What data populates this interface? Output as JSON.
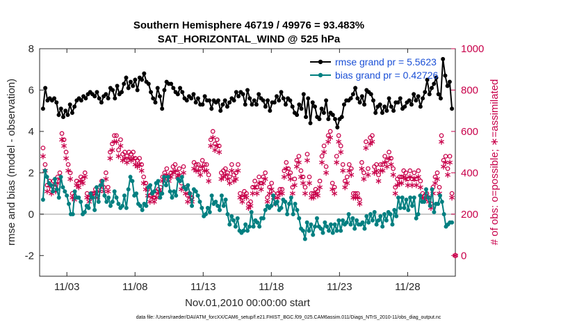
{
  "chart_data": {
    "type": "line",
    "title": "Southern Hemisphere 46719 / 49976 = 93.483%",
    "subtitle": "SAT_HORIZONTAL_WIND @ 525 hPa",
    "xlabel": "Nov.01,2010 00:00:00 start",
    "ylabel_left": "rmse and bias (model - observation)",
    "ylabel_right": "# of obs: o=possible; ∗=assimilated",
    "xlim": [
      0,
      30.5
    ],
    "ylim_left": [
      -3,
      8
    ],
    "ylim_right": [
      -100,
      1000
    ],
    "x_ticks": [
      2,
      7,
      12,
      17,
      22,
      27
    ],
    "x_tick_labels": [
      "11/03",
      "11/08",
      "11/13",
      "11/18",
      "11/23",
      "11/28"
    ],
    "y_ticks_left": [
      -2,
      0,
      2,
      4,
      6,
      8
    ],
    "y_ticks_right": [
      0,
      200,
      400,
      600,
      800,
      1000
    ],
    "grid": false,
    "legend_position": "top-right",
    "footer": "data file: /Users/raeder/DAI/ATM_forcXX/CAM6_setup/f.e21.FHIST_BGC.f09_025.CAM6assim.011/Diags_NTrS_2010-11/obs_diag_output.nc",
    "series": [
      {
        "name": "rmse grand pr = 5.5623",
        "color": "#000000",
        "marker": "dot",
        "axis": "left",
        "values": [
          5.1,
          6.1,
          5.5,
          5.6,
          5.5,
          5.6,
          5.4,
          4.8,
          5.1,
          4.7,
          5.0,
          4.8,
          5.3,
          4.9,
          5.2,
          5.5,
          5.6,
          5.5,
          5.7,
          5.6,
          5.8,
          5.9,
          5.8,
          5.7,
          5.9,
          5.6,
          5.4,
          5.7,
          5.8,
          5.6,
          6.1,
          6.0,
          5.6,
          6.2,
          5.8,
          5.9,
          6.3,
          6.6,
          6.1,
          6.4,
          6.2,
          6.5,
          6.0,
          6.6,
          6.5,
          6.8,
          6.4,
          6.3,
          5.9,
          5.6,
          5.4,
          6.1,
          5.7,
          5.1,
          6.0,
          6.4,
          6.3,
          6.3,
          6.1,
          5.9,
          5.8,
          6.1,
          5.9,
          5.6,
          5.5,
          5.7,
          5.6,
          5.8,
          5.4,
          5.6,
          5.3,
          5.3,
          5.7,
          5.5,
          5.5,
          5.1,
          5.5,
          5.4,
          5.5,
          5.0,
          5.3,
          5.5,
          5.2,
          5.4,
          5.6,
          5.5,
          5.9,
          5.7,
          5.9,
          5.8,
          5.3,
          6.0,
          5.6,
          5.3,
          5.5,
          5.3,
          5.8,
          5.6,
          5.5,
          5.2,
          5.5,
          5.0,
          5.4,
          5.4,
          5.7,
          5.5,
          5.9,
          5.6,
          5.3,
          5.6,
          5.5,
          5.2,
          4.9,
          4.8,
          5.3,
          5.1,
          5.8,
          4.7,
          5.6,
          4.4,
          5.4,
          5.2,
          4.7,
          4.6,
          5.1,
          4.9,
          5.5,
          4.6,
          4.9,
          4.8,
          4.6,
          4.2,
          4.6,
          4.7,
          5.3,
          5.5,
          5.5,
          5.6,
          5.8,
          6.1,
          5.6,
          5.4,
          5.7,
          5.3,
          6.0,
          5.9,
          5.8,
          5.5,
          4.9,
          5.2,
          5.3,
          4.9,
          5.2,
          5.0,
          5.6,
          5.2,
          5.0,
          5.4,
          5.4,
          5.6,
          5.1,
          5.2,
          5.4,
          5.5,
          5.3,
          5.8,
          5.5,
          5.7,
          5.2,
          5.6,
          5.9,
          6.5,
          5.8,
          6.1,
          6.3,
          6.6,
          5.8,
          5.6,
          7.5,
          6.7,
          6.2,
          6.4,
          5.1
        ]
      },
      {
        "name": "bias grand pr = 0.42726",
        "color": "#007f80",
        "marker": "dot",
        "axis": "left",
        "values": [
          0.7,
          2.1,
          1.8,
          1.5,
          1.4,
          1.1,
          1.7,
          1.2,
          0.8,
          1.8,
          1.3,
          1.1,
          0.9,
          0.5,
          0.0,
          0.0,
          1.1,
          0.8,
          0.8,
          0.6,
          0.0,
          0.1,
          0.4,
          0.3,
          1.0,
          0.8,
          0.2,
          1.3,
          0.6,
          1.4,
          1.6,
          0.9,
          0.6,
          0.8,
          0.4,
          0.6,
          1.1,
          0.8,
          0.5,
          0.3,
          0.4,
          0.9,
          0.3,
          1.2,
          1.8,
          1.6,
          0.9,
          1.0,
          0.5,
          0.4,
          0.2,
          0.5,
          0.4,
          1.3,
          1.4,
          1.0,
          1.1,
          1.5,
          1.6,
          0.8,
          1.0,
          1.8,
          1.4,
          1.8,
          1.1,
          0.8,
          1.1,
          0.9,
          1.7,
          1.6,
          1.8,
          1.3,
          1.2,
          1.4,
          1.0,
          0.4,
          1.2,
          1.1,
          0.9,
          0.6,
          0.3,
          -0.1,
          0.0,
          0.3,
          0.1,
          0.9,
          0.5,
          0.6,
          0.4,
          0.2,
          0.9,
          0.4,
          0.7,
          0.0,
          -0.5,
          -0.1,
          -0.3,
          -0.6,
          -0.2,
          -0.8,
          -0.9,
          -0.8,
          -0.5,
          -0.8,
          -0.6,
          0.1,
          -0.6,
          -0.3,
          -0.4,
          -0.6,
          -0.2,
          -0.2,
          0.2,
          0.4,
          0.3,
          0.4,
          0.9,
          0.5,
          0.6,
          0.2,
          0.3,
          0.7,
          0.6,
          0.0,
          0.5,
          0.8,
          0.0,
          0.5,
          0.2,
          -0.2,
          -0.7,
          -0.8,
          -1.2,
          -0.4,
          -0.8,
          -0.5,
          -1.0,
          -0.6,
          -0.2,
          -0.6,
          -0.7,
          -0.9,
          -0.4,
          -0.6,
          -0.8,
          -0.5,
          -0.9,
          -0.5,
          -0.8,
          -0.3,
          -0.8,
          -0.3,
          -0.5,
          -0.4,
          0.0,
          -0.5,
          -0.2,
          -0.7,
          -0.3,
          -0.5,
          -0.5,
          -0.4,
          -0.7,
          -0.1,
          -0.4,
          0.0,
          -0.3,
          0.1,
          -0.5,
          -0.3,
          -0.1,
          -0.6,
          0.0,
          -0.3,
          0.1,
          0.0,
          -0.5,
          0.2,
          -0.1,
          0.8,
          0.3,
          0.8,
          0.3,
          0.7,
          0.2,
          0.8,
          0.4,
          0.8,
          -0.2,
          0.0,
          0.9,
          0.6,
          0.6,
          1.2,
          0.8,
          0.4,
          1.2,
          0.1,
          0.5,
          0.5,
          0.9,
          0.6,
          0.0,
          -0.6,
          -0.5,
          -0.4,
          -0.4
        ]
      },
      {
        "name": "possible",
        "color": "#c8004a",
        "marker": "circle",
        "axis": "right",
        "values": [
          520,
          440,
          340,
          360,
          320,
          360,
          330,
          380,
          400,
          590,
          560,
          500,
          440,
          400,
          300,
          290,
          360,
          350,
          380,
          370,
          400,
          300,
          280,
          300,
          300,
          320,
          300,
          330,
          360,
          330,
          400,
          330,
          500,
          540,
          580,
          580,
          510,
          560,
          490,
          500,
          480,
          500,
          490,
          500,
          470,
          460,
          470,
          440,
          380,
          350,
          320,
          290,
          300,
          280,
          310,
          320,
          330,
          380,
          400,
          420,
          380,
          400,
          430,
          440,
          400,
          420,
          350,
          430,
          330,
          290,
          300,
          280,
          450,
          440,
          440,
          420,
          460,
          440,
          440,
          390,
          560,
          600,
          540,
          560,
          530,
          400,
          410,
          420,
          400,
          380,
          440,
          390,
          400,
          440,
          300,
          280,
          310,
          300,
          250,
          260,
          330,
          360,
          330,
          380,
          350,
          380,
          400,
          280,
          330,
          350,
          300,
          270,
          300,
          320,
          320,
          410,
          450,
          420,
          400,
          330,
          370,
          460,
          480,
          410,
          380,
          330,
          490,
          380,
          300,
          300,
          320,
          310,
          360,
          480,
          530,
          430,
          580,
          600,
          350,
          330,
          480,
          580,
          530,
          440,
          360,
          380,
          440,
          420,
          300,
          300,
          300,
          270,
          450,
          400,
          550,
          420,
          570,
          580,
          430,
          440,
          390,
          440,
          440,
          480,
          460,
          500,
          470,
          420,
          330,
          370,
          380,
          380,
          410,
          400,
          370,
          410,
          370,
          400,
          370,
          410,
          360,
          300,
          290,
          300,
          280,
          250,
          330,
          380,
          400,
          330,
          580,
          460,
          480,
          420,
          480,
          300
        ]
      },
      {
        "name": "assimilated",
        "color": "#c8004a",
        "marker": "asterisk",
        "axis": "right",
        "values": [
          480,
          410,
          310,
          340,
          300,
          340,
          310,
          350,
          370,
          560,
          530,
          470,
          410,
          370,
          280,
          270,
          340,
          330,
          360,
          350,
          380,
          280,
          260,
          280,
          280,
          300,
          280,
          310,
          340,
          310,
          370,
          310,
          470,
          510,
          550,
          550,
          480,
          530,
          460,
          470,
          450,
          470,
          460,
          470,
          440,
          430,
          440,
          410,
          350,
          320,
          290,
          260,
          280,
          260,
          280,
          300,
          310,
          360,
          370,
          390,
          360,
          380,
          400,
          410,
          380,
          390,
          320,
          400,
          300,
          260,
          280,
          260,
          420,
          410,
          410,
          390,
          430,
          410,
          410,
          360,
          530,
          570,
          510,
          530,
          500,
          370,
          380,
          390,
          370,
          350,
          410,
          360,
          370,
          410,
          280,
          260,
          290,
          280,
          230,
          240,
          300,
          330,
          300,
          350,
          320,
          350,
          370,
          260,
          300,
          320,
          280,
          250,
          280,
          300,
          300,
          380,
          420,
          390,
          370,
          300,
          340,
          430,
          450,
          380,
          350,
          300,
          460,
          350,
          280,
          280,
          300,
          290,
          330,
          450,
          500,
          400,
          550,
          570,
          320,
          300,
          450,
          550,
          500,
          410,
          330,
          350,
          410,
          390,
          280,
          280,
          280,
          250,
          420,
          370,
          520,
          390,
          540,
          550,
          400,
          410,
          360,
          410,
          410,
          450,
          430,
          470,
          440,
          390,
          300,
          340,
          350,
          350,
          380,
          370,
          340,
          380,
          340,
          370,
          340,
          380,
          330,
          280,
          270,
          280,
          260,
          230,
          300,
          350,
          370,
          300,
          550,
          430,
          450,
          390,
          450,
          280
        ]
      }
    ],
    "extra_points": [
      {
        "x": 30.5,
        "y_right": 0,
        "marker": "circle+asterisk"
      }
    ]
  }
}
